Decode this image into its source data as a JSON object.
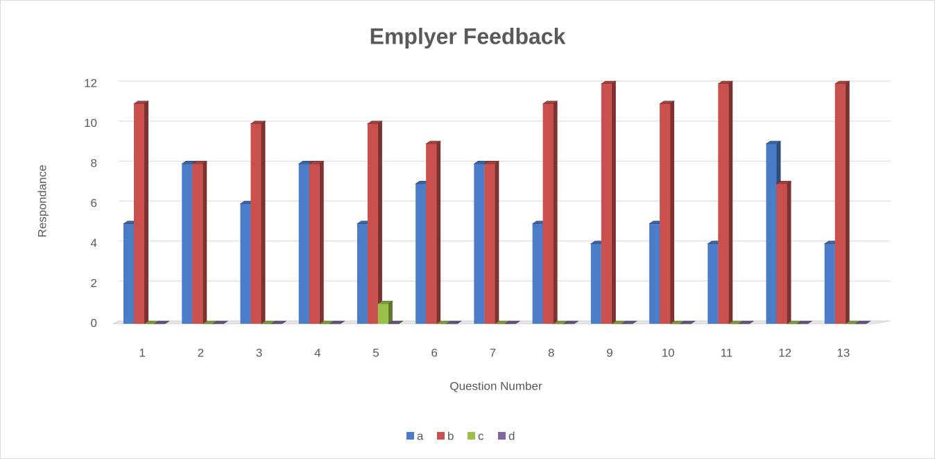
{
  "chart_data": {
    "type": "bar",
    "title": "Emplyer Feedback",
    "x_label": "Question Number",
    "y_label": "Respondance",
    "categories": [
      "1",
      "2",
      "3",
      "4",
      "5",
      "6",
      "7",
      "8",
      "9",
      "10",
      "11",
      "12",
      "13"
    ],
    "series": [
      {
        "name": "a",
        "color": "#4a7cc7",
        "values": [
          5,
          8,
          6,
          8,
          5,
          7,
          8,
          5,
          4,
          5,
          4,
          9,
          4
        ]
      },
      {
        "name": "b",
        "color": "#c9504d",
        "values": [
          11,
          8,
          10,
          8,
          10,
          9,
          8,
          11,
          12,
          11,
          12,
          7,
          12
        ]
      },
      {
        "name": "c",
        "color": "#9bc04a",
        "values": [
          0,
          0,
          0,
          0,
          1,
          0,
          0,
          0,
          0,
          0,
          0,
          0,
          0
        ]
      },
      {
        "name": "d",
        "color": "#8064a2",
        "values": [
          0,
          0,
          0,
          0,
          0,
          0,
          0,
          0,
          0,
          0,
          0,
          0,
          0
        ]
      }
    ],
    "ylim": [
      0,
      12
    ],
    "yticks": [
      0,
      2,
      4,
      6,
      8,
      10,
      12
    ],
    "grid": true,
    "legend": "bottom"
  }
}
